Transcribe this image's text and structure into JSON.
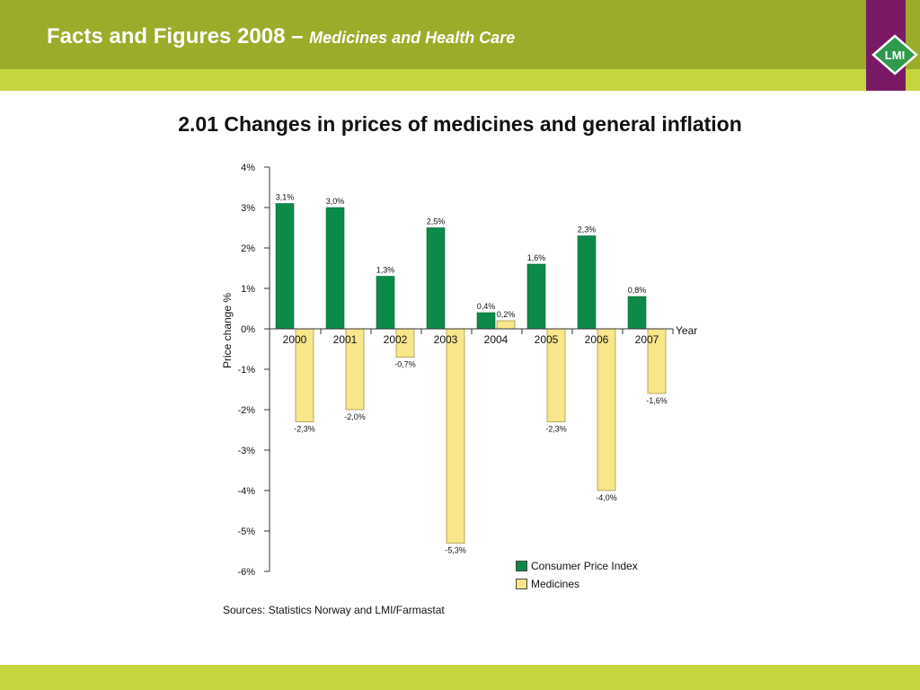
{
  "header": {
    "title": "Facts and Figures 2008 –",
    "subtitle": "Medicines and Health Care",
    "logo_text": "LMI"
  },
  "slide_title": "2.01 Changes in prices of medicines and general inflation",
  "source": "Sources: Statistics Norway and LMI/Farmastat",
  "colors": {
    "header": "#9bac2a",
    "header_light": "#c5d53d",
    "logo_bg": "#7a1a66",
    "cpi": "#0b8a4a",
    "medicines": "#f7e68a"
  },
  "chart_data": {
    "type": "bar",
    "categories": [
      "2000",
      "2001",
      "2002",
      "2003",
      "2004",
      "2005",
      "2006",
      "2007"
    ],
    "series": [
      {
        "name": "Consumer Price Index",
        "values": [
          3.1,
          3.0,
          1.3,
          2.5,
          0.4,
          1.6,
          2.3,
          0.8
        ],
        "labels": [
          "3,1%",
          "3,0%",
          "1,3%",
          "2,5%",
          "0,4%",
          "1,6%",
          "2,3%",
          "0,8%"
        ]
      },
      {
        "name": "Medicines",
        "values": [
          -2.3,
          -2.0,
          -0.7,
          -5.3,
          0.2,
          -2.3,
          -4.0,
          -1.6
        ],
        "labels": [
          "-2,3%",
          "-2,0%",
          "-0,7%",
          "-5,3%",
          "0,2%",
          "-2,3%",
          "-4,0%",
          "-1,6%"
        ]
      }
    ],
    "ylabel": "Price change %",
    "xlabel": "Year",
    "ylim": [
      -6,
      4
    ],
    "yticks": [
      "4%",
      "3%",
      "2%",
      "1%",
      "0%",
      "-1%",
      "-2%",
      "-3%",
      "-4%",
      "-5%",
      "-6%"
    ],
    "yticks_values": [
      4,
      3,
      2,
      1,
      0,
      -1,
      -2,
      -3,
      -4,
      -5,
      -6
    ],
    "grid": false,
    "legend_position": "bottom-right"
  }
}
